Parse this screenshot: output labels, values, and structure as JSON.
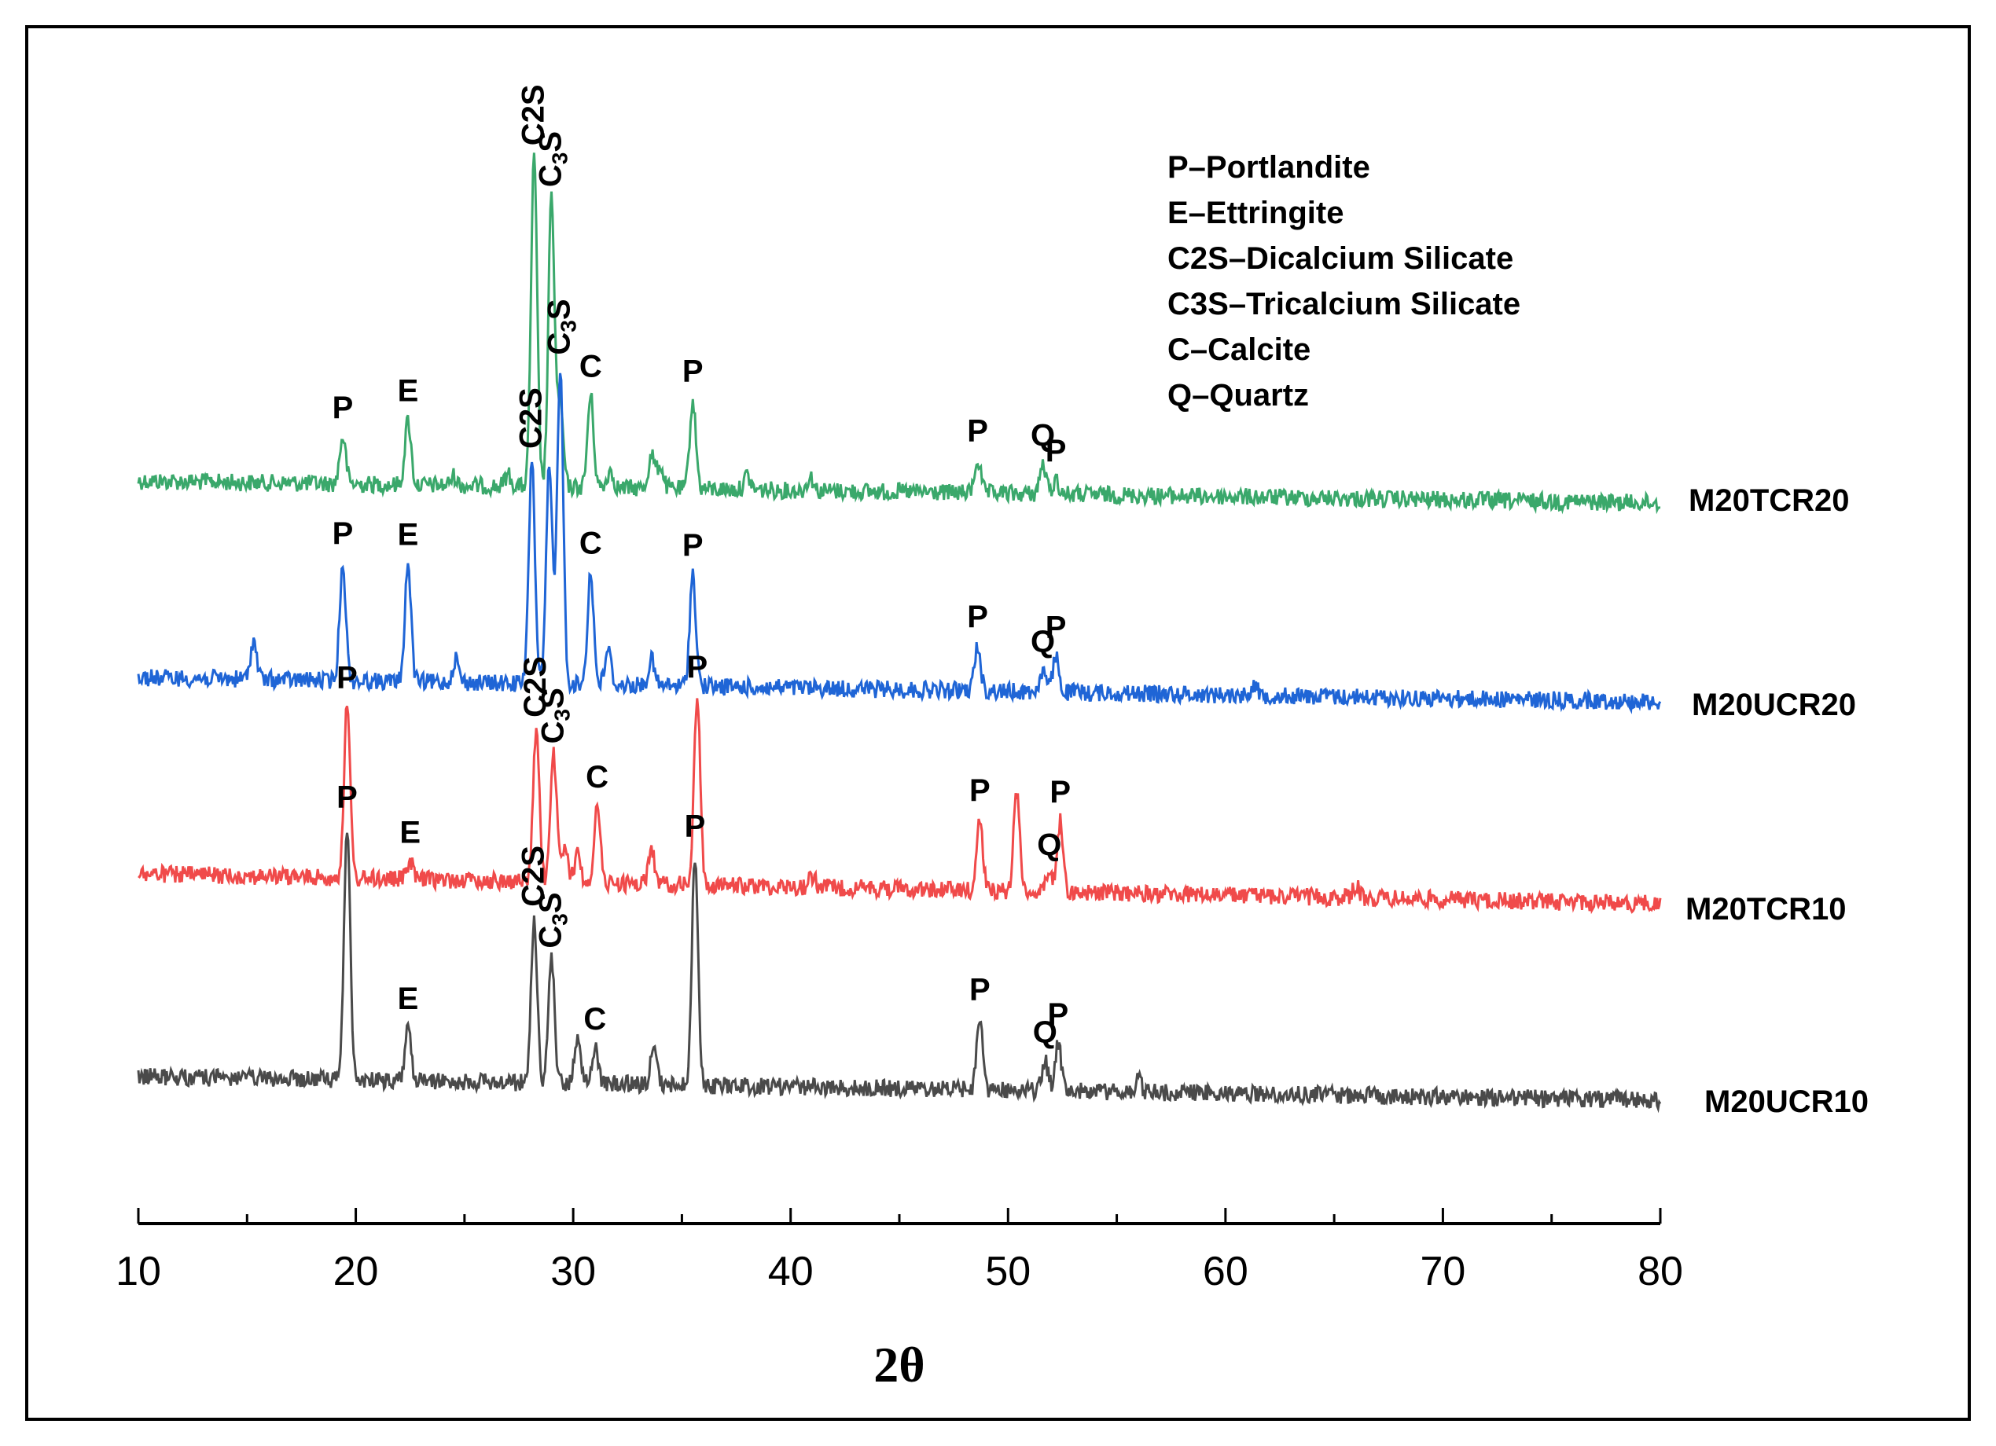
{
  "chart_data": {
    "type": "line",
    "title": "",
    "xlabel": "2θ",
    "ylabel": "",
    "xlim": [
      10,
      80
    ],
    "xticks": [
      "10",
      "20",
      "30",
      "40",
      "50",
      "60",
      "70",
      "80"
    ],
    "grid": false,
    "legend": [
      "P–Portlandite",
      "E–Ettringite",
      "C2S–Dicalcium Silicate",
      "C3S–Tricalcium Silicate",
      "C–Calcite",
      "Q–Quartz"
    ],
    "legend_position": "top-right",
    "series": [
      {
        "name": "M20TCR20",
        "color": "#3aa86b",
        "baseline": 1.0,
        "peaks": [
          {
            "x": 19.4,
            "h": 0.4
          },
          {
            "x": 22.4,
            "h": 0.55
          },
          {
            "x": 24.5,
            "h": 0.08
          },
          {
            "x": 27.0,
            "h": 0.1
          },
          {
            "x": 28.2,
            "h": 2.8
          },
          {
            "x": 29.0,
            "h": 2.45
          },
          {
            "x": 29.4,
            "h": 0.7
          },
          {
            "x": 30.8,
            "h": 0.78
          },
          {
            "x": 31.7,
            "h": 0.15
          },
          {
            "x": 33.6,
            "h": 0.28
          },
          {
            "x": 34.0,
            "h": 0.2
          },
          {
            "x": 35.5,
            "h": 0.75
          },
          {
            "x": 38.0,
            "h": 0.12
          },
          {
            "x": 40.9,
            "h": 0.12
          },
          {
            "x": 48.6,
            "h": 0.28
          },
          {
            "x": 51.6,
            "h": 0.25
          },
          {
            "x": 52.2,
            "h": 0.12
          }
        ],
        "peak_labels": [
          {
            "x": 19.4,
            "text": "P"
          },
          {
            "x": 22.4,
            "text": "E"
          },
          {
            "x": 28.2,
            "text": "C2S"
          },
          {
            "x": 29.0,
            "text": "C3S"
          },
          {
            "x": 30.8,
            "text": "C"
          },
          {
            "x": 35.5,
            "text": "P"
          },
          {
            "x": 48.6,
            "text": "P"
          },
          {
            "x": 51.6,
            "text": "Q"
          },
          {
            "x": 52.2,
            "text": "P"
          }
        ]
      },
      {
        "name": "M20UCR20",
        "color": "#1f65d6",
        "baseline": 1.0,
        "peaks": [
          {
            "x": 15.3,
            "h": 0.33
          },
          {
            "x": 19.4,
            "h": 1.0
          },
          {
            "x": 22.4,
            "h": 1.0
          },
          {
            "x": 24.6,
            "h": 0.2
          },
          {
            "x": 28.1,
            "h": 1.9
          },
          {
            "x": 28.9,
            "h": 1.85
          },
          {
            "x": 29.4,
            "h": 2.7
          },
          {
            "x": 30.8,
            "h": 0.95
          },
          {
            "x": 31.6,
            "h": 0.3
          },
          {
            "x": 33.6,
            "h": 0.22
          },
          {
            "x": 35.5,
            "h": 0.95
          },
          {
            "x": 48.6,
            "h": 0.38
          },
          {
            "x": 51.6,
            "h": 0.18
          },
          {
            "x": 52.2,
            "h": 0.3
          },
          {
            "x": 61.3,
            "h": 0.1
          }
        ],
        "peak_labels": [
          {
            "x": 19.4,
            "text": "P"
          },
          {
            "x": 22.4,
            "text": "E"
          },
          {
            "x": 28.1,
            "text": "C2S"
          },
          {
            "x": 29.4,
            "text": "C3S"
          },
          {
            "x": 30.8,
            "text": "C"
          },
          {
            "x": 35.5,
            "text": "P"
          },
          {
            "x": 48.6,
            "text": "P"
          },
          {
            "x": 51.6,
            "text": "Q"
          },
          {
            "x": 52.2,
            "text": "P"
          }
        ]
      },
      {
        "name": "M20TCR10",
        "color": "#f04a4a",
        "baseline": 1.0,
        "peaks": [
          {
            "x": 19.6,
            "h": 1.45
          },
          {
            "x": 22.5,
            "h": 0.15
          },
          {
            "x": 28.3,
            "h": 1.3
          },
          {
            "x": 29.1,
            "h": 1.08
          },
          {
            "x": 29.6,
            "h": 0.3
          },
          {
            "x": 30.2,
            "h": 0.25
          },
          {
            "x": 31.1,
            "h": 0.65
          },
          {
            "x": 33.6,
            "h": 0.3
          },
          {
            "x": 35.7,
            "h": 1.6
          },
          {
            "x": 41.0,
            "h": 0.1
          },
          {
            "x": 48.7,
            "h": 0.6
          },
          {
            "x": 50.4,
            "h": 0.85
          },
          {
            "x": 51.9,
            "h": 0.15
          },
          {
            "x": 52.4,
            "h": 0.6
          },
          {
            "x": 66.0,
            "h": 0.1
          }
        ],
        "peak_labels": [
          {
            "x": 19.6,
            "text": "P"
          },
          {
            "x": 22.5,
            "text": "E"
          },
          {
            "x": 28.3,
            "text": "C2S"
          },
          {
            "x": 29.1,
            "text": "C3S"
          },
          {
            "x": 31.1,
            "text": "C"
          },
          {
            "x": 35.7,
            "text": "P"
          },
          {
            "x": 48.7,
            "text": "P"
          },
          {
            "x": 51.9,
            "text": "Q"
          },
          {
            "x": 52.4,
            "text": "P"
          }
        ]
      },
      {
        "name": "M20UCR10",
        "color": "#4a4a4a",
        "baseline": 1.0,
        "peaks": [
          {
            "x": 19.6,
            "h": 2.15
          },
          {
            "x": 22.4,
            "h": 0.45
          },
          {
            "x": 28.2,
            "h": 1.4
          },
          {
            "x": 29.0,
            "h": 1.05
          },
          {
            "x": 30.2,
            "h": 0.4
          },
          {
            "x": 31.0,
            "h": 0.3
          },
          {
            "x": 33.7,
            "h": 0.3
          },
          {
            "x": 35.6,
            "h": 1.95
          },
          {
            "x": 48.7,
            "h": 0.6
          },
          {
            "x": 51.7,
            "h": 0.25
          },
          {
            "x": 52.3,
            "h": 0.4
          },
          {
            "x": 56.0,
            "h": 0.1
          }
        ],
        "peak_labels": [
          {
            "x": 19.6,
            "text": "P"
          },
          {
            "x": 22.4,
            "text": "E"
          },
          {
            "x": 28.2,
            "text": "C2S"
          },
          {
            "x": 29.0,
            "text": "C3S"
          },
          {
            "x": 31.0,
            "text": "C"
          },
          {
            "x": 35.6,
            "text": "P"
          },
          {
            "x": 48.7,
            "text": "P"
          },
          {
            "x": 51.7,
            "text": "Q"
          },
          {
            "x": 52.3,
            "text": "P"
          }
        ]
      }
    ]
  }
}
